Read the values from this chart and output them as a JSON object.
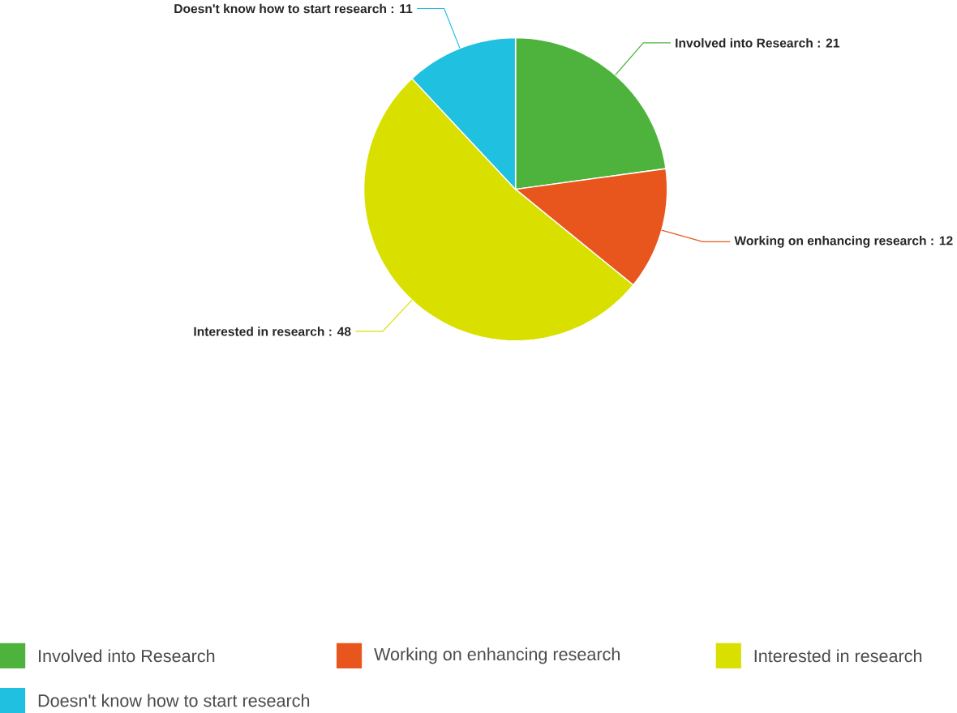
{
  "chart_data": {
    "type": "pie",
    "categories": [
      "Involved into Research",
      "Working on enhancing research",
      "Interested in research",
      "Doesn't know how to start research"
    ],
    "values": [
      21,
      12,
      48,
      11
    ],
    "colors": [
      "#4db33d",
      "#e8561e",
      "#d9e000",
      "#1fc0e0"
    ],
    "value_labels": [
      "Involved into Research : 21",
      "Working on enhancing research : 12",
      "Interested in research : 48",
      "Doesn't know how to start research : 11"
    ],
    "legend": "bottom"
  }
}
